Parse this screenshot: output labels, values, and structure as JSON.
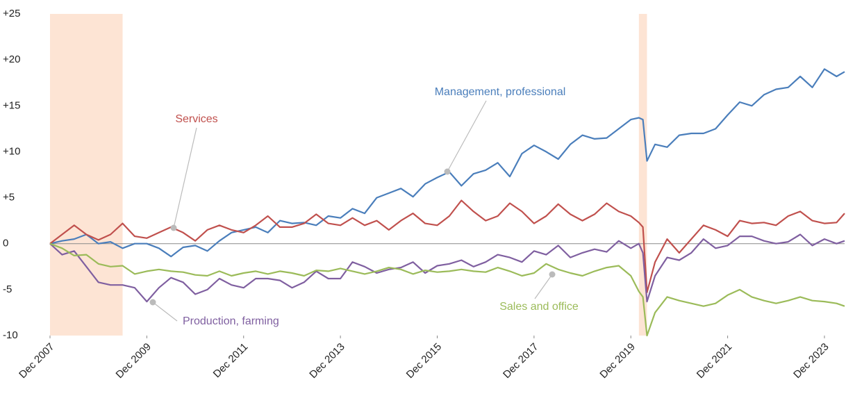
{
  "chart_data": {
    "type": "line",
    "x": [
      "Dec 2007",
      "Mar 2008",
      "Jun 2008",
      "Sep 2008",
      "Dec 2008",
      "Mar 2009",
      "Jun 2009",
      "Sep 2009",
      "Dec 2009",
      "Mar 2010",
      "Jun 2010",
      "Sep 2010",
      "Dec 2010",
      "Mar 2011",
      "Jun 2011",
      "Sep 2011",
      "Dec 2011",
      "Mar 2012",
      "Jun 2012",
      "Sep 2012",
      "Dec 2012",
      "Mar 2013",
      "Jun 2013",
      "Sep 2013",
      "Dec 2013",
      "Mar 2014",
      "Jun 2014",
      "Sep 2014",
      "Dec 2014",
      "Mar 2015",
      "Jun 2015",
      "Sep 2015",
      "Dec 2015",
      "Mar 2016",
      "Jun 2016",
      "Sep 2016",
      "Dec 2016",
      "Mar 2017",
      "Jun 2017",
      "Sep 2017",
      "Dec 2017",
      "Mar 2018",
      "Jun 2018",
      "Sep 2018",
      "Dec 2018",
      "Mar 2019",
      "Jun 2019",
      "Sep 2019",
      "Dec 2019",
      "Feb 2020",
      "Mar 2020",
      "Apr 2020",
      "Jun 2020",
      "Sep 2020",
      "Dec 2020",
      "Mar 2021",
      "Jun 2021",
      "Sep 2021",
      "Dec 2021",
      "Mar 2022",
      "Jun 2022",
      "Sep 2022",
      "Dec 2022",
      "Mar 2023",
      "Jun 2023",
      "Sep 2023",
      "Dec 2023",
      "Mar 2024",
      "May 2024"
    ],
    "series": [
      {
        "name": "Management, professional",
        "color": "#4a7ebb",
        "values": [
          0,
          0.3,
          0.5,
          1.0,
          0,
          0.2,
          -0.5,
          0,
          0,
          -0.5,
          -1.4,
          -0.4,
          -0.2,
          -0.8,
          0.3,
          1.2,
          1.5,
          1.8,
          1.2,
          2.5,
          2.2,
          2.3,
          2.0,
          3.0,
          2.8,
          3.8,
          3.3,
          5.0,
          5.5,
          6.0,
          5.1,
          6.5,
          7.2,
          7.8,
          6.3,
          7.6,
          8.0,
          8.8,
          7.3,
          9.8,
          10.7,
          10.0,
          9.2,
          10.8,
          11.8,
          11.4,
          11.5,
          12.5,
          13.5,
          13.7,
          13.5,
          9.0,
          10.8,
          10.5,
          11.8,
          12.0,
          12.0,
          12.5,
          14.0,
          15.4,
          15.0,
          16.2,
          16.8,
          17.0,
          18.2,
          17.0,
          19.0,
          18.2,
          18.7
        ]
      },
      {
        "name": "Services",
        "color": "#c0504d",
        "values": [
          0,
          1.0,
          2.0,
          1.0,
          0.4,
          1.0,
          2.2,
          0.8,
          0.6,
          1.2,
          1.8,
          1.2,
          0.3,
          1.5,
          2.0,
          1.5,
          1.2,
          2.0,
          3.0,
          1.8,
          1.8,
          2.2,
          3.2,
          2.2,
          2.0,
          2.8,
          2.0,
          2.5,
          1.5,
          2.5,
          3.3,
          2.2,
          2.0,
          3.0,
          4.7,
          3.5,
          2.5,
          3.0,
          4.4,
          3.5,
          2.2,
          3.0,
          4.3,
          3.2,
          2.5,
          3.2,
          4.4,
          3.5,
          3.0,
          2.3,
          1.8,
          -5.3,
          -2.0,
          0.5,
          -1.0,
          0.5,
          2.0,
          1.5,
          0.8,
          2.5,
          2.2,
          2.3,
          2.0,
          3.0,
          3.5,
          2.5,
          2.2,
          2.3,
          3.3
        ]
      },
      {
        "name": "Production, farming",
        "color": "#7f5fa0",
        "values": [
          0,
          -1.2,
          -0.8,
          -2.5,
          -4.2,
          -4.5,
          -4.5,
          -4.8,
          -6.3,
          -4.8,
          -3.7,
          -4.2,
          -5.5,
          -5.0,
          -3.8,
          -4.5,
          -4.8,
          -3.8,
          -3.8,
          -4.0,
          -4.8,
          -4.2,
          -3.0,
          -3.8,
          -3.8,
          -2.0,
          -2.5,
          -3.2,
          -2.8,
          -2.6,
          -2.0,
          -3.2,
          -2.4,
          -2.2,
          -1.8,
          -2.5,
          -2.0,
          -1.2,
          -1.5,
          -2.0,
          -0.8,
          -1.2,
          -0.2,
          -1.5,
          -1.0,
          -0.6,
          -0.9,
          0.3,
          -0.5,
          0,
          -1.0,
          -6.3,
          -3.5,
          -1.5,
          -1.8,
          -1.0,
          0.5,
          -0.5,
          -0.2,
          0.8,
          0.8,
          0.3,
          0,
          0.2,
          1.0,
          -0.2,
          0.5,
          0,
          0.3
        ]
      },
      {
        "name": "Sales and office",
        "color": "#9bbb59",
        "values": [
          0,
          -0.5,
          -1.3,
          -1.2,
          -2.2,
          -2.5,
          -2.4,
          -3.3,
          -3.0,
          -2.8,
          -3.0,
          -3.1,
          -3.4,
          -3.5,
          -3.0,
          -3.5,
          -3.2,
          -3.0,
          -3.3,
          -3.0,
          -3.2,
          -3.5,
          -2.9,
          -3.0,
          -2.7,
          -3.0,
          -3.3,
          -3.0,
          -2.6,
          -2.8,
          -3.3,
          -2.9,
          -3.1,
          -3.0,
          -2.8,
          -3.0,
          -3.1,
          -2.6,
          -3.0,
          -3.5,
          -3.2,
          -2.2,
          -2.8,
          -3.2,
          -3.5,
          -3.0,
          -2.6,
          -2.4,
          -3.5,
          -5.2,
          -5.8,
          -10.0,
          -7.5,
          -5.8,
          -6.2,
          -6.5,
          -6.8,
          -6.5,
          -5.6,
          -5.0,
          -5.8,
          -6.2,
          -6.5,
          -6.2,
          -5.8,
          -6.2,
          -6.3,
          -6.5,
          -6.8
        ]
      }
    ],
    "xlim": [
      "Dec 2007",
      "May 2024"
    ],
    "xticks": [
      "Dec 2007",
      "Dec 2009",
      "Dec 2011",
      "Dec 2013",
      "Dec 2015",
      "Dec 2017",
      "Dec 2019",
      "Dec 2021",
      "Dec 2023"
    ],
    "ylim": [
      -10,
      25
    ],
    "yticks": [
      -10,
      -5,
      0,
      {
        "value": 5,
        "label": "+5"
      },
      {
        "value": 10,
        "label": "+10"
      },
      {
        "value": 15,
        "label": "+15"
      },
      {
        "value": 20,
        "label": "+20"
      },
      {
        "value": 25,
        "label": "+25"
      }
    ],
    "shaded_periods": [
      [
        "Dec 2007",
        "Jun 2009"
      ],
      [
        "Feb 2020",
        "Apr 2020"
      ]
    ],
    "shade_color": "#fde4d4",
    "zero_line": true
  }
}
